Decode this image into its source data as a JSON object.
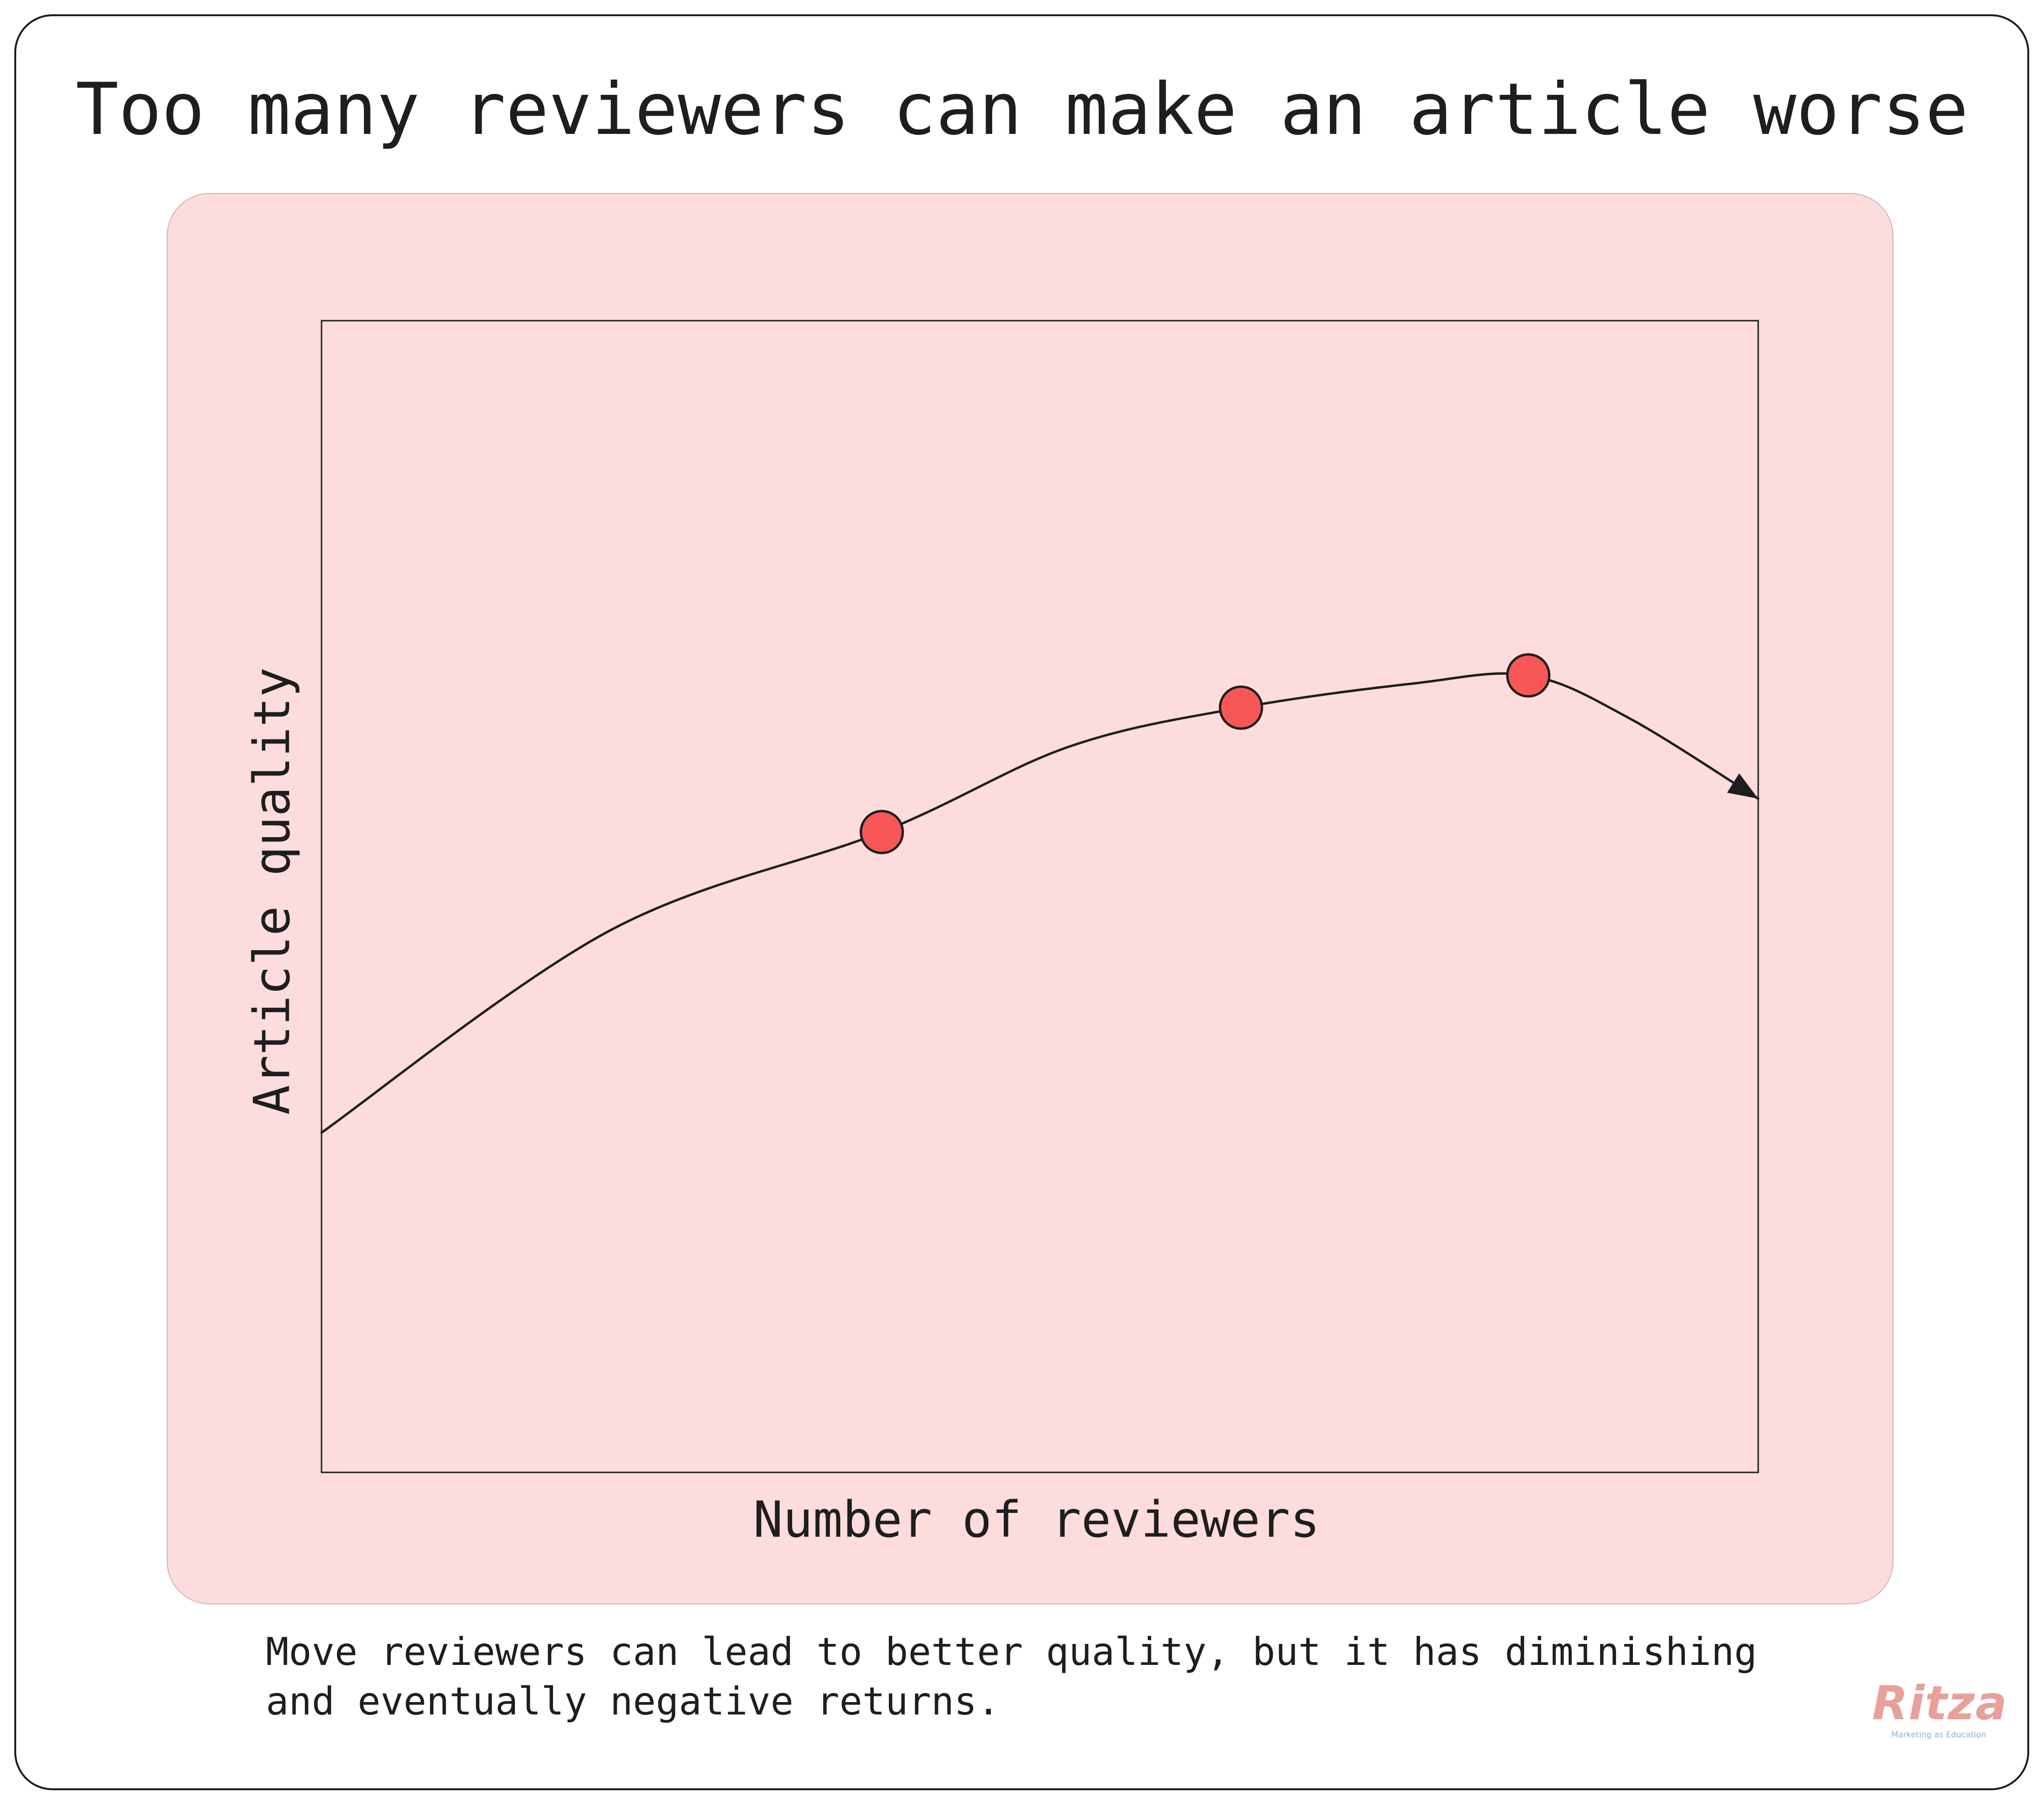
{
  "title": "Too many reviewers can make an article worse",
  "caption": {
    "line1": "Move reviewers can lead to better quality, but it has diminishing",
    "line2": "and eventually negative returns."
  },
  "logo": {
    "name": "Ritza",
    "tagline": "Marketing as Education"
  },
  "colors": {
    "panel": "#fcdcdc",
    "marker": "#f75657",
    "ink": "#1e1e1e",
    "logo": "#e8a09a",
    "tagline": "#7fb8d4"
  },
  "chart_data": {
    "type": "line",
    "title": "",
    "xlabel": "Number of reviewers",
    "ylabel": "Article quality",
    "xlim": [
      0,
      100
    ],
    "ylim": [
      0,
      100
    ],
    "grid": false,
    "legend": "none",
    "curve": {
      "x": [
        0,
        20,
        39,
        52,
        64,
        76,
        84,
        91,
        100
      ],
      "y": [
        29.5,
        47,
        55.6,
        63,
        66.4,
        68.5,
        69.2,
        65.5,
        58.5
      ],
      "arrow_end": true
    },
    "markers": {
      "x": [
        39,
        64,
        84
      ],
      "y": [
        55.6,
        66.4,
        69.2
      ]
    }
  }
}
